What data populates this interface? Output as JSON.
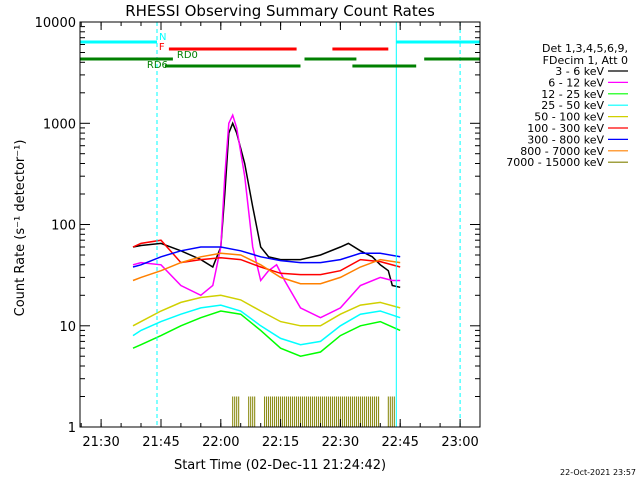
{
  "chart_data": {
    "type": "line",
    "title": "RHESSI Observing Summary Count Rates",
    "xlabel": "Start Time (02-Dec-11 21:24:42)",
    "ylabel": "Count Rate (s⁻¹ detector⁻¹)",
    "y_scale": "log",
    "ylim": [
      1,
      10000
    ],
    "xlim": [
      "21:24:42",
      "23:05:00"
    ],
    "x_tick_labels": [
      "21:30",
      "21:45",
      "22:00",
      "22:15",
      "22:30",
      "22:45",
      "23:00"
    ],
    "y_tick_labels": [
      "1",
      "10",
      "100",
      "1000",
      "10000"
    ],
    "legend": {
      "placement": "right",
      "header": [
        "Det 1,3,4,5,6,9,",
        "FDecim 1, Att 0"
      ]
    },
    "series": [
      {
        "name": "3 - 6 keV",
        "color": "#000000",
        "x": [
          "21:38",
          "21:40",
          "21:45",
          "21:50",
          "21:55",
          "21:58",
          "22:00",
          "22:01",
          "22:02",
          "22:03",
          "22:04",
          "22:06",
          "22:08",
          "22:10",
          "22:12",
          "22:15",
          "22:20",
          "22:25",
          "22:30",
          "22:32",
          "22:35",
          "22:38",
          "22:40",
          "22:42",
          "22:43",
          "22:45"
        ],
        "y": [
          60,
          62,
          65,
          55,
          45,
          38,
          60,
          200,
          800,
          1000,
          800,
          400,
          150,
          60,
          48,
          45,
          45,
          50,
          60,
          65,
          55,
          48,
          40,
          35,
          25,
          24
        ]
      },
      {
        "name": "6 - 12 keV",
        "color": "#ff00ff",
        "x": [
          "21:38",
          "21:40",
          "21:45",
          "21:50",
          "21:55",
          "21:58",
          "22:00",
          "22:01",
          "22:02",
          "22:03",
          "22:04",
          "22:06",
          "22:08",
          "22:10",
          "22:12",
          "22:14",
          "22:16",
          "22:20",
          "22:25",
          "22:30",
          "22:35",
          "22:40",
          "22:43",
          "22:45"
        ],
        "y": [
          40,
          42,
          40,
          25,
          20,
          25,
          60,
          300,
          1000,
          1200,
          900,
          300,
          60,
          28,
          35,
          40,
          28,
          15,
          12,
          15,
          25,
          30,
          28,
          28
        ]
      },
      {
        "name": "12 - 25 keV",
        "color": "#00ff00",
        "x": [
          "21:38",
          "21:40",
          "21:45",
          "21:50",
          "21:55",
          "22:00",
          "22:05",
          "22:10",
          "22:15",
          "22:20",
          "22:25",
          "22:30",
          "22:35",
          "22:40",
          "22:45"
        ],
        "y": [
          6,
          6.5,
          8,
          10,
          12,
          14,
          13,
          9,
          6,
          5,
          5.5,
          8,
          10,
          11,
          9
        ]
      },
      {
        "name": "25 - 50 keV",
        "color": "#00ffff",
        "x": [
          "21:38",
          "21:40",
          "21:45",
          "21:50",
          "21:55",
          "22:00",
          "22:05",
          "22:10",
          "22:15",
          "22:20",
          "22:25",
          "22:30",
          "22:35",
          "22:40",
          "22:45"
        ],
        "y": [
          8,
          9,
          11,
          13,
          15,
          16,
          14,
          10,
          7.5,
          6.5,
          7,
          10,
          13,
          14,
          12
        ]
      },
      {
        "name": "50 - 100 keV",
        "color": "#d0d000",
        "x": [
          "21:38",
          "21:40",
          "21:45",
          "21:50",
          "21:55",
          "22:00",
          "22:05",
          "22:10",
          "22:15",
          "22:20",
          "22:25",
          "22:30",
          "22:35",
          "22:40",
          "22:45"
        ],
        "y": [
          10,
          11,
          14,
          17,
          19,
          20,
          18,
          14,
          11,
          10,
          10,
          13,
          16,
          17,
          15
        ]
      },
      {
        "name": "100 - 300 keV",
        "color": "#ff0000",
        "x": [
          "21:38",
          "21:40",
          "21:45",
          "21:50",
          "21:55",
          "22:00",
          "22:05",
          "22:10",
          "22:15",
          "22:20",
          "22:25",
          "22:30",
          "22:35",
          "22:40",
          "22:45"
        ],
        "y": [
          60,
          65,
          70,
          42,
          45,
          47,
          45,
          38,
          33,
          32,
          32,
          35,
          45,
          43,
          38
        ]
      },
      {
        "name": "300 - 800 keV",
        "color": "#0000ff",
        "x": [
          "21:38",
          "21:40",
          "21:45",
          "21:50",
          "21:55",
          "22:00",
          "22:05",
          "22:10",
          "22:15",
          "22:20",
          "22:25",
          "22:30",
          "22:35",
          "22:40",
          "22:45"
        ],
        "y": [
          38,
          40,
          48,
          55,
          60,
          60,
          55,
          48,
          44,
          42,
          42,
          45,
          52,
          52,
          48
        ]
      },
      {
        "name": "800 - 7000 keV",
        "color": "#ff8000",
        "x": [
          "21:38",
          "21:40",
          "21:45",
          "21:50",
          "21:55",
          "22:00",
          "22:05",
          "22:10",
          "22:15",
          "22:20",
          "22:25",
          "22:30",
          "22:35",
          "22:40",
          "22:45"
        ],
        "y": [
          28,
          30,
          35,
          42,
          48,
          52,
          50,
          40,
          30,
          26,
          26,
          30,
          38,
          45,
          42
        ]
      },
      {
        "name": "7000 - 15000 keV",
        "color": "#808000",
        "x": [
          "22:03",
          "22:05",
          "22:07",
          "22:09",
          "22:11",
          "22:40",
          "22:42",
          "22:44"
        ],
        "y": [
          2,
          2,
          2,
          2,
          2,
          2,
          2,
          2
        ]
      }
    ],
    "vertical_markers": [
      {
        "x": "21:24:42",
        "color": "#00ffff",
        "style": "solid"
      },
      {
        "x": "21:44:00",
        "color": "#00ffff",
        "style": "dashed"
      },
      {
        "x": "22:44:00",
        "color": "#00ffff",
        "style": "solid"
      },
      {
        "x": "23:00:00",
        "color": "#00ffff",
        "style": "dashed"
      }
    ],
    "flag_bars": [
      {
        "label": "N",
        "color": "#00ffff",
        "level": 1,
        "segments": [
          [
            "21:24:42",
            "21:44:00"
          ],
          [
            "22:44:00",
            "23:05:00"
          ]
        ]
      },
      {
        "label": "F",
        "color": "#ff0000",
        "level": 2,
        "segments": [
          [
            "21:47:00",
            "22:19:00"
          ],
          [
            "22:28:00",
            "22:42:00"
          ]
        ]
      },
      {
        "label": "RD0",
        "color": "#008000",
        "level": 3,
        "segments": [
          [
            "21:24:42",
            "21:48:00"
          ],
          [
            "22:21:00",
            "22:34:00"
          ],
          [
            "22:51:00",
            "23:05:00"
          ]
        ]
      },
      {
        "label": "RD6",
        "color": "#008000",
        "level": 4,
        "segments": [
          [
            "21:46:00",
            "22:20:00"
          ],
          [
            "22:33:00",
            "22:49:00"
          ]
        ]
      }
    ]
  },
  "footer": {
    "timestamp": "22-Oct-2021 23:57"
  }
}
